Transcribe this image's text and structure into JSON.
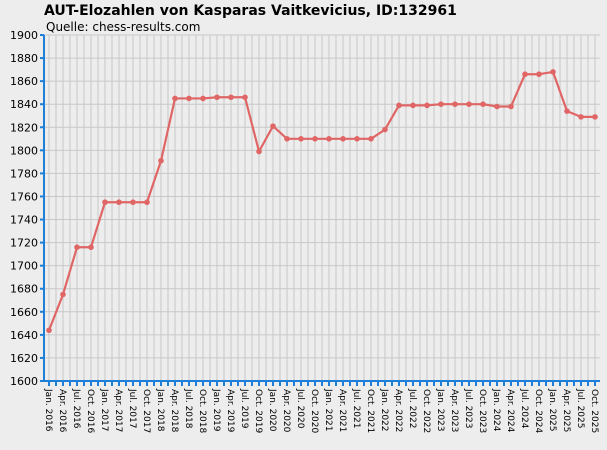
{
  "chart_data": {
    "type": "line",
    "title": "AUT-Elozahlen von Kasparas Vaitkevicius, ID:132961",
    "subtitle": "Quelle: chess-results.com",
    "ylim": [
      1600,
      1900
    ],
    "yticks": [
      1600,
      1620,
      1640,
      1660,
      1680,
      1700,
      1720,
      1740,
      1760,
      1780,
      1800,
      1820,
      1840,
      1860,
      1880,
      1900
    ],
    "grid": true,
    "categories": [
      "Jan. 2016",
      "",
      "Apr. 2016",
      "",
      "Jul. 2016",
      "",
      "Oct. 2016",
      "",
      "Jan. 2017",
      "",
      "Apr. 2017",
      "",
      "Jul. 2017",
      "",
      "Oct. 2017",
      "",
      "Jan. 2018",
      "",
      "Apr. 2018",
      "",
      "Jul. 2018",
      "",
      "Oct. 2018",
      "",
      "Jan. 2019",
      "",
      "Apr. 2019",
      "",
      "Jul. 2019",
      "",
      "Oct. 2019",
      "",
      "Jan. 2020",
      "",
      "Apr. 2020",
      "",
      "Jul. 2020",
      "",
      "Oct. 2020",
      "",
      "Jan. 2021",
      "",
      "Apr. 2021",
      "",
      "Jul. 2021",
      "",
      "Oct. 2021",
      "",
      "Jan. 2022",
      "",
      "Apr. 2022",
      "",
      "Jul. 2022",
      "",
      "Oct. 2022",
      "",
      "Jan. 2023",
      "",
      "Apr. 2023",
      "",
      "Jul. 2023",
      "",
      "Oct. 2023",
      "",
      "Jan. 2024",
      "",
      "Apr. 2024",
      "",
      "Jul. 2024",
      "",
      "Oct. 2024",
      "",
      "Jan. 2025",
      "",
      "Apr. 2025",
      "",
      "Jul. 2025",
      "",
      "Oct. 2025"
    ],
    "series": [
      {
        "color": "#e06666",
        "points": [
          {
            "x": "Jan. 2016",
            "y": 1644
          },
          {
            "x": "Apr. 2016",
            "y": 1675
          },
          {
            "x": "Jul. 2016",
            "y": 1716
          },
          {
            "x": "Oct. 2016",
            "y": 1716
          },
          {
            "x": "Jan. 2017",
            "y": 1755
          },
          {
            "x": "Apr. 2017",
            "y": 1755
          },
          {
            "x": "Jul. 2017",
            "y": 1755
          },
          {
            "x": "Oct. 2017",
            "y": 1755
          },
          {
            "x": "Jan. 2018",
            "y": 1791
          },
          {
            "x": "Apr. 2018",
            "y": 1845
          },
          {
            "x": "Jul. 2018",
            "y": 1845
          },
          {
            "x": "Oct. 2018",
            "y": 1845
          },
          {
            "x": "Jan. 2019",
            "y": 1846
          },
          {
            "x": "Apr. 2019",
            "y": 1846
          },
          {
            "x": "Jul. 2019",
            "y": 1846
          },
          {
            "x": "Oct. 2019",
            "y": 1799
          },
          {
            "x": "Jan. 2020",
            "y": 1821
          },
          {
            "x": "Apr. 2020",
            "y": 1810
          },
          {
            "x": "Jul. 2020",
            "y": 1810
          },
          {
            "x": "Oct. 2020",
            "y": 1810
          },
          {
            "x": "Jan. 2021",
            "y": 1810
          },
          {
            "x": "Apr. 2021",
            "y": 1810
          },
          {
            "x": "Jul. 2021",
            "y": 1810
          },
          {
            "x": "Oct. 2021",
            "y": 1810
          },
          {
            "x": "Jan. 2022",
            "y": 1818
          },
          {
            "x": "Apr. 2022",
            "y": 1839
          },
          {
            "x": "Jul. 2022",
            "y": 1839
          },
          {
            "x": "Oct. 2022",
            "y": 1839
          },
          {
            "x": "Jan. 2023",
            "y": 1840
          },
          {
            "x": "Apr. 2023",
            "y": 1840
          },
          {
            "x": "Jul. 2023",
            "y": 1840
          },
          {
            "x": "Oct. 2023",
            "y": 1840
          },
          {
            "x": "Jan. 2024",
            "y": 1838
          },
          {
            "x": "Apr. 2024",
            "y": 1838
          },
          {
            "x": "Jul. 2024",
            "y": 1866
          },
          {
            "x": "Oct. 2024",
            "y": 1866
          },
          {
            "x": "Jan. 2025",
            "y": 1868
          },
          {
            "x": "Apr. 2025",
            "y": 1834
          },
          {
            "x": "Jul. 2025",
            "y": 1829
          },
          {
            "x": "Oct. 2025",
            "y": 1829
          }
        ]
      }
    ],
    "colors": {
      "background": "#ededed",
      "grid": "#c8c8c8",
      "axis": "#1e7fd8",
      "line": "#e06666"
    }
  }
}
